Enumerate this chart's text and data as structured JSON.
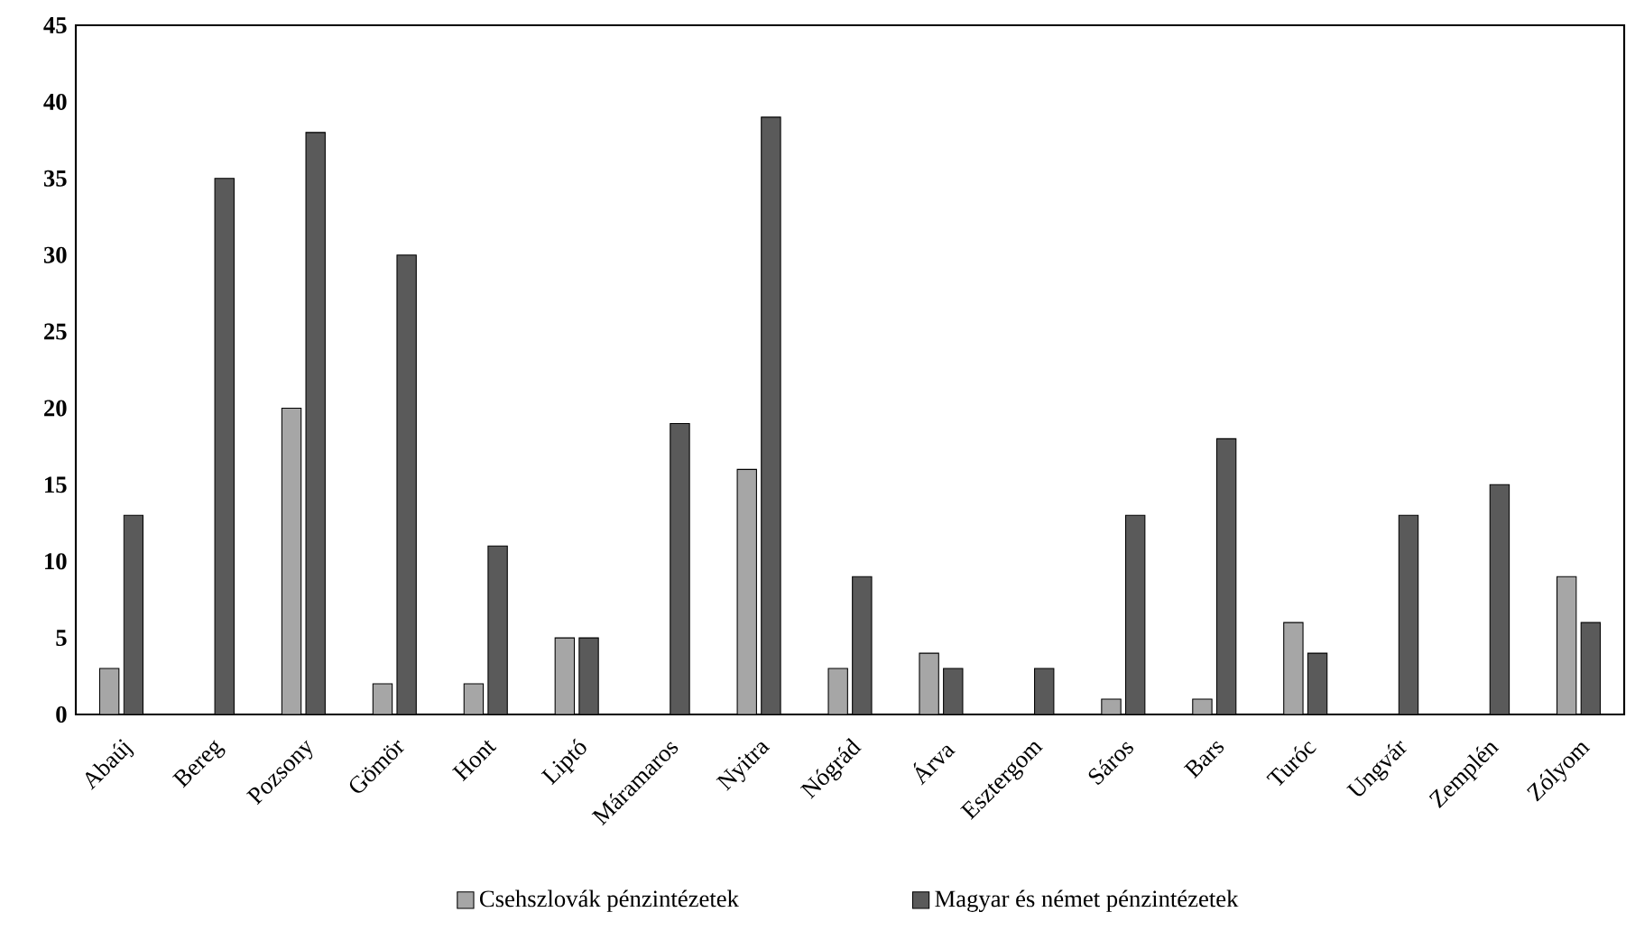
{
  "chart_data": {
    "type": "bar",
    "categories": [
      "Abaúj",
      "Bereg",
      "Pozsony",
      "Gömör",
      "Hont",
      "Liptó",
      "Máramaros",
      "Nyitra",
      "Nógrád",
      "Árva",
      "Esztergom",
      "Sáros",
      "Bars",
      "Turóc",
      "Ungvár",
      "Zemplén",
      "Zólyom"
    ],
    "series": [
      {
        "name": "Csehszlovák pénzintézetek",
        "color": "#a6a6a6",
        "values": [
          3,
          0,
          20,
          2,
          2,
          5,
          0,
          16,
          3,
          4,
          0,
          1,
          1,
          6,
          0,
          0,
          9
        ]
      },
      {
        "name": "Magyar és német pénzintézetek",
        "color": "#5a5a5a",
        "values": [
          13,
          35,
          38,
          30,
          11,
          5,
          19,
          39,
          9,
          3,
          3,
          13,
          18,
          4,
          13,
          15,
          6
        ]
      }
    ],
    "ylim": [
      0,
      45
    ],
    "yticks": [
      0,
      5,
      10,
      15,
      20,
      25,
      30,
      35,
      40,
      45
    ],
    "grid": false,
    "legend": "bottom"
  }
}
